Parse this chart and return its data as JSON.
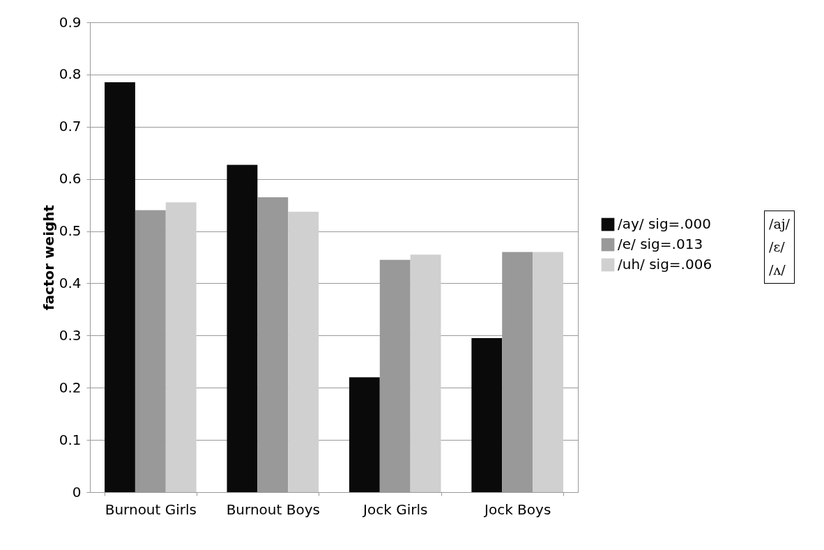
{
  "chart_data": {
    "type": "bar",
    "ylabel": "factor weight",
    "categories": [
      "Burnout Girls",
      "Burnout Boys",
      "Jock Girls",
      "Jock Boys"
    ],
    "series": [
      {
        "name": "/ay/ sig=.000",
        "color": "#0a0a0a",
        "values": [
          0.785,
          0.627,
          0.22,
          0.295
        ]
      },
      {
        "name": "/e/ sig=.013",
        "color": "#999999",
        "values": [
          0.54,
          0.565,
          0.445,
          0.46
        ]
      },
      {
        "name": "/uh/ sig=.006",
        "color": "#d0d0d0",
        "values": [
          0.555,
          0.537,
          0.455,
          0.46
        ]
      }
    ],
    "ylim": [
      0,
      0.9
    ],
    "yticks": [
      0,
      0.1,
      0.2,
      0.3,
      0.4,
      0.5,
      0.6,
      0.7,
      0.8,
      0.9
    ],
    "grid": "y",
    "legend": "right",
    "annotations": [
      "/aj/",
      "/ɛ/",
      "/ʌ/"
    ]
  }
}
